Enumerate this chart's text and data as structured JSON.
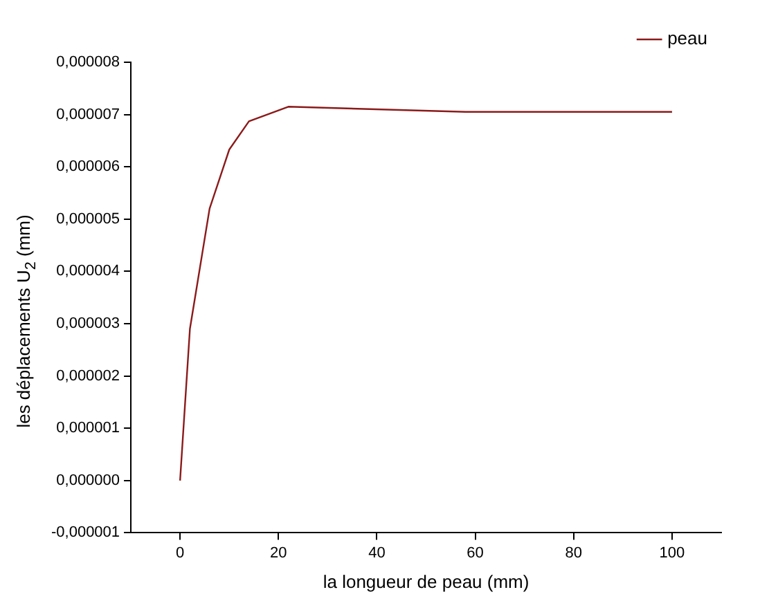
{
  "chart_data": {
    "type": "line",
    "xlabel": "la longueur de peau (mm)",
    "ylabel": "les déplacements U$_{2}$ (mm)",
    "series": [
      {
        "name": "peau",
        "color": "#8b1a1a",
        "x": [
          0,
          2,
          6,
          10,
          14,
          22,
          58,
          100
        ],
        "values": [
          0,
          2.9e-06,
          5.2e-06,
          6.33e-06,
          6.87e-06,
          7.15e-06,
          7.05e-06,
          7.05e-06
        ]
      }
    ],
    "xlim": [
      -10,
      110
    ],
    "xticks": [
      0,
      20,
      40,
      60,
      80,
      100
    ],
    "ylim": [
      -1e-06,
      8e-06
    ],
    "yticks": [
      {
        "value": -1e-06,
        "label": "-0,000001"
      },
      {
        "value": 0,
        "label": "0,000000"
      },
      {
        "value": 1e-06,
        "label": "0,000001"
      },
      {
        "value": 2e-06,
        "label": "0,000002"
      },
      {
        "value": 3e-06,
        "label": "0,000003"
      },
      {
        "value": 4e-06,
        "label": "0,000004"
      },
      {
        "value": 5e-06,
        "label": "0,000005"
      },
      {
        "value": 6e-06,
        "label": "0,000006"
      },
      {
        "value": 7e-06,
        "label": "0,000007"
      },
      {
        "value": 8e-06,
        "label": "0,000008"
      }
    ],
    "grid": false,
    "legend": "top right",
    "marker": "none",
    "line_style": "solid"
  }
}
